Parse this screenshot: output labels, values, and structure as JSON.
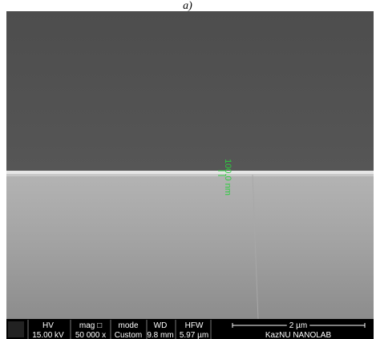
{
  "caption": "a)",
  "measurement": "100.0 nm",
  "info_bar": {
    "columns": [
      {
        "header": "HV",
        "value": "15.00 kV"
      },
      {
        "header": "mag □",
        "value": "50 000 x"
      },
      {
        "header": "mode",
        "value": "Custom"
      },
      {
        "header": "WD",
        "value": "9.8 mm"
      },
      {
        "header": "HFW",
        "value": "5.97 µm"
      }
    ],
    "scale_bar": "2 µm",
    "lab": "KazNU NANOLAB"
  }
}
